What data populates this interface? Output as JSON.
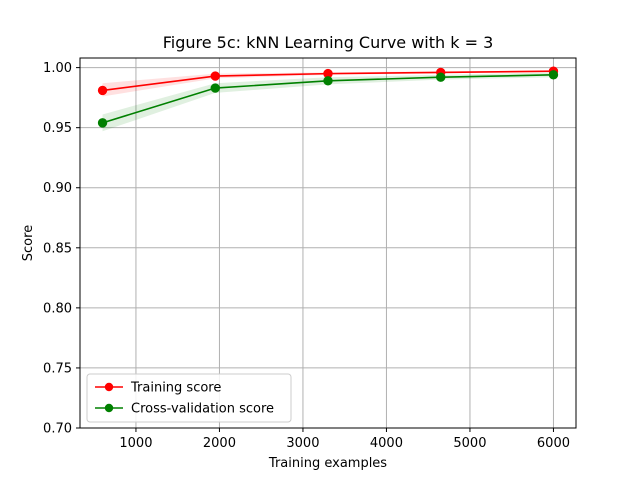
{
  "chart_data": {
    "type": "line",
    "title": "Figure 5c: kNN Learning Curve with k = 3",
    "xlabel": "Training examples",
    "ylabel": "Score",
    "xlim": [
      330,
      6270
    ],
    "ylim": [
      0.7,
      1.008
    ],
    "x_ticks": [
      1000,
      2000,
      3000,
      4000,
      5000,
      6000
    ],
    "y_ticks": [
      0.7,
      0.75,
      0.8,
      0.85,
      0.9,
      0.95,
      1.0
    ],
    "x_tick_labels": [
      "1000",
      "2000",
      "3000",
      "4000",
      "5000",
      "6000"
    ],
    "y_tick_labels": [
      "0.70",
      "0.75",
      "0.80",
      "0.85",
      "0.90",
      "0.95",
      "1.00"
    ],
    "grid": true,
    "legend_position": "lower-left",
    "x": [
      600,
      1950,
      3300,
      4650,
      6000
    ],
    "series": [
      {
        "name": "Training score",
        "color": "#ff0000",
        "band_color": "#ff0000",
        "values": [
          0.981,
          0.993,
          0.995,
          0.996,
          0.997
        ],
        "lower": [
          0.976,
          0.991,
          0.994,
          0.9955,
          0.9965
        ],
        "upper": [
          0.987,
          0.995,
          0.996,
          0.997,
          0.9975
        ]
      },
      {
        "name": "Cross-validation score",
        "color": "#008000",
        "band_color": "#008000",
        "values": [
          0.954,
          0.983,
          0.989,
          0.992,
          0.994
        ],
        "lower": [
          0.947,
          0.979,
          0.986,
          0.99,
          0.992
        ],
        "upper": [
          0.961,
          0.987,
          0.992,
          0.994,
          0.996
        ]
      }
    ]
  }
}
